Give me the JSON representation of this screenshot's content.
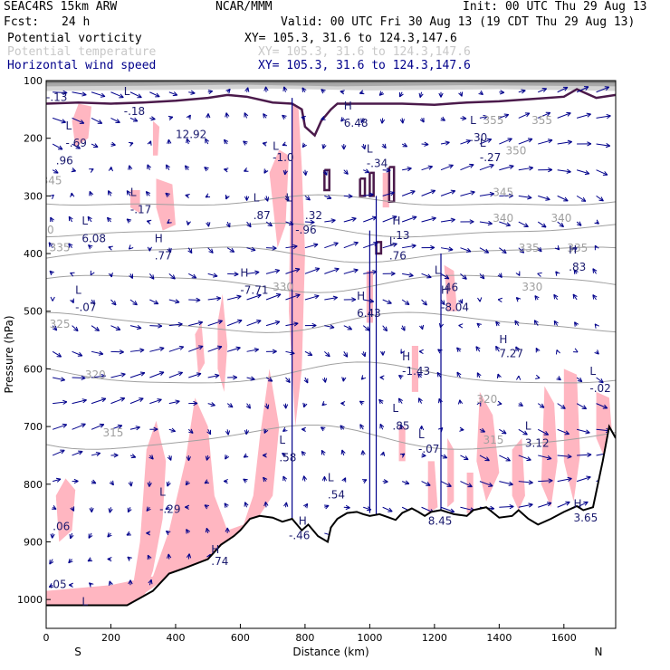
{
  "header": {
    "model": "SEAC4RS 15km ARW",
    "center": "NCAR/MMM",
    "init": "Init: 00 UTC Thu 29 Aug 13",
    "fcst_label": "Fcst:",
    "fcst_value": "24 h",
    "valid": "Valid: 00 UTC Fri 30 Aug 13 (19 CDT Thu 29 Aug 13)"
  },
  "fields": [
    {
      "name": "Potential vorticity",
      "xy": "XY= 105.3, 31.6 to 124.3,147.6",
      "color": "#000000"
    },
    {
      "name": "Potential temperature",
      "xy": "XY= 105.3, 31.6 to 124.3,147.6",
      "color": "#c8c8c8"
    },
    {
      "name": "Horizontal wind speed",
      "xy": "XY= 105.3, 31.6 to 124.3,147.6",
      "color": "#00008b"
    }
  ],
  "chart_data": {
    "type": "cross-section",
    "xlabel": "Distance (km)",
    "ylabel": "Pressure (hPa)",
    "xlim": [
      0,
      1760
    ],
    "ylim": [
      1050,
      100
    ],
    "x_ticks": [
      0,
      200,
      400,
      600,
      800,
      1000,
      1200,
      1400,
      1600
    ],
    "y_ticks": [
      100,
      200,
      300,
      400,
      500,
      600,
      700,
      800,
      900,
      1000
    ],
    "x_end_labels": {
      "left": "S",
      "right": "N"
    },
    "theta_contours": [
      {
        "label": "345",
        "pressure": 310
      },
      {
        "label": "340",
        "pressure": 360
      },
      {
        "label": "335",
        "pressure": 400
      },
      {
        "label": "330",
        "pressure": 450
      },
      {
        "label": "325",
        "pressure": 520
      },
      {
        "label": "320",
        "pressure": 610
      },
      {
        "label": "315",
        "pressure": 720
      }
    ],
    "theta_labels": [
      {
        "t": "355",
        "x": 1350,
        "p": 175
      },
      {
        "t": "355",
        "x": 1500,
        "p": 175
      },
      {
        "t": "350",
        "x": 1420,
        "p": 228
      },
      {
        "t": "345",
        "x": 1380,
        "p": 300
      },
      {
        "t": "345",
        "x": -15,
        "p": 280
      },
      {
        "t": "340",
        "x": -40,
        "p": 365
      },
      {
        "t": "340",
        "x": 1380,
        "p": 345
      },
      {
        "t": "340",
        "x": 1560,
        "p": 345
      },
      {
        "t": "335",
        "x": 10,
        "p": 396
      },
      {
        "t": "335",
        "x": 1460,
        "p": 397
      },
      {
        "t": "335",
        "x": 1610,
        "p": 397
      },
      {
        "t": "330",
        "x": 700,
        "p": 464
      },
      {
        "t": "330",
        "x": 1470,
        "p": 464
      },
      {
        "t": "325",
        "x": 10,
        "p": 529
      },
      {
        "t": "320",
        "x": 120,
        "p": 617
      },
      {
        "t": "320",
        "x": 1330,
        "p": 659
      },
      {
        "t": "315",
        "x": 175,
        "p": 717
      },
      {
        "t": "315",
        "x": 1350,
        "p": 730
      }
    ],
    "pv_extrema": [
      {
        "t": "L",
        "x": -20,
        "p": 120
      },
      {
        "t": "-.13",
        "x": 0,
        "p": 135
      },
      {
        "t": "L",
        "x": 240,
        "p": 125
      },
      {
        "t": "-.18",
        "x": 240,
        "p": 160
      },
      {
        "t": "L",
        "x": 60,
        "p": 185
      },
      {
        "t": "-.69",
        "x": 60,
        "p": 215
      },
      {
        "t": ".96",
        "x": 30,
        "p": 245
      },
      {
        "t": "12.92",
        "x": 400,
        "p": 200
      },
      {
        "t": "L",
        "x": 700,
        "p": 220
      },
      {
        "t": "-1.0",
        "x": 700,
        "p": 240
      },
      {
        "t": "H",
        "x": 920,
        "p": 150
      },
      {
        "t": "6.48",
        "x": 920,
        "p": 180
      },
      {
        "t": "L",
        "x": 1310,
        "p": 175
      },
      {
        "t": ".30",
        "x": 1310,
        "p": 205
      },
      {
        "t": "L",
        "x": 1340,
        "p": 215
      },
      {
        "t": "-.27",
        "x": 1340,
        "p": 240
      },
      {
        "t": "L",
        "x": 990,
        "p": 225
      },
      {
        "t": "-.34",
        "x": 990,
        "p": 250
      },
      {
        "t": "L",
        "x": 260,
        "p": 300
      },
      {
        "t": "-.17",
        "x": 260,
        "p": 330
      },
      {
        "t": "L",
        "x": 640,
        "p": 310
      },
      {
        "t": ".87",
        "x": 640,
        "p": 340
      },
      {
        "t": "L",
        "x": 740,
        "p": 310
      },
      {
        "t": ".32",
        "x": 800,
        "p": 340
      },
      {
        "t": "-.96",
        "x": 770,
        "p": 365
      },
      {
        "t": "H",
        "x": 1070,
        "p": 350
      },
      {
        "t": ".13",
        "x": 1070,
        "p": 375
      },
      {
        "t": "L",
        "x": 110,
        "p": 350
      },
      {
        "t": "6.08",
        "x": 110,
        "p": 380
      },
      {
        "t": "H",
        "x": 335,
        "p": 380
      },
      {
        "t": ".77",
        "x": 335,
        "p": 410
      },
      {
        "t": "L",
        "x": 1060,
        "p": 385
      },
      {
        "t": ".76",
        "x": 1060,
        "p": 410
      },
      {
        "t": "H",
        "x": 1615,
        "p": 400
      },
      {
        "t": ".83",
        "x": 1615,
        "p": 430
      },
      {
        "t": "H",
        "x": 600,
        "p": 440
      },
      {
        "t": "-7.71",
        "x": 600,
        "p": 470
      },
      {
        "t": "L",
        "x": 1200,
        "p": 435
      },
      {
        "t": ".46",
        "x": 1220,
        "p": 465
      },
      {
        "t": "L",
        "x": 90,
        "p": 470
      },
      {
        "t": "-.07",
        "x": 90,
        "p": 500
      },
      {
        "t": "H",
        "x": 960,
        "p": 480
      },
      {
        "t": "6.43",
        "x": 960,
        "p": 510
      },
      {
        "t": "H",
        "x": 1220,
        "p": 470
      },
      {
        "t": "-8.04",
        "x": 1220,
        "p": 500
      },
      {
        "t": "H",
        "x": 1400,
        "p": 555
      },
      {
        "t": "7.27",
        "x": 1400,
        "p": 580
      },
      {
        "t": "H",
        "x": 1100,
        "p": 585
      },
      {
        "t": "-1.43",
        "x": 1100,
        "p": 610
      },
      {
        "t": "L",
        "x": 1680,
        "p": 610
      },
      {
        "t": "-.02",
        "x": 1680,
        "p": 640
      },
      {
        "t": "L",
        "x": 1070,
        "p": 675
      },
      {
        "t": ".85",
        "x": 1070,
        "p": 705
      },
      {
        "t": "L",
        "x": 1150,
        "p": 720
      },
      {
        "t": "-.07",
        "x": 1150,
        "p": 745
      },
      {
        "t": "L",
        "x": 1480,
        "p": 705
      },
      {
        "t": "3.12",
        "x": 1480,
        "p": 735
      },
      {
        "t": "L",
        "x": 720,
        "p": 730
      },
      {
        "t": ".58",
        "x": 720,
        "p": 760
      },
      {
        "t": "L",
        "x": 870,
        "p": 795
      },
      {
        "t": ".54",
        "x": 870,
        "p": 825
      },
      {
        "t": "L",
        "x": 350,
        "p": 820
      },
      {
        "t": "-.29",
        "x": 350,
        "p": 850
      },
      {
        "t": "H",
        "x": 1630,
        "p": 840
      },
      {
        "t": "3.65",
        "x": 1630,
        "p": 865
      },
      {
        "t": "8.45",
        "x": 1180,
        "p": 870
      },
      {
        "t": "L",
        "x": -20,
        "p": 850
      },
      {
        "t": ".06",
        "x": 20,
        "p": 880
      },
      {
        "t": "H",
        "x": 780,
        "p": 870
      },
      {
        "t": "-.46",
        "x": 750,
        "p": 895
      },
      {
        "t": "H",
        "x": 510,
        "p": 920
      },
      {
        "t": ".74",
        "x": 510,
        "p": 940
      },
      {
        "t": ".05",
        "x": 10,
        "p": 980
      },
      {
        "t": "L",
        "x": 110,
        "p": 1010
      }
    ]
  }
}
